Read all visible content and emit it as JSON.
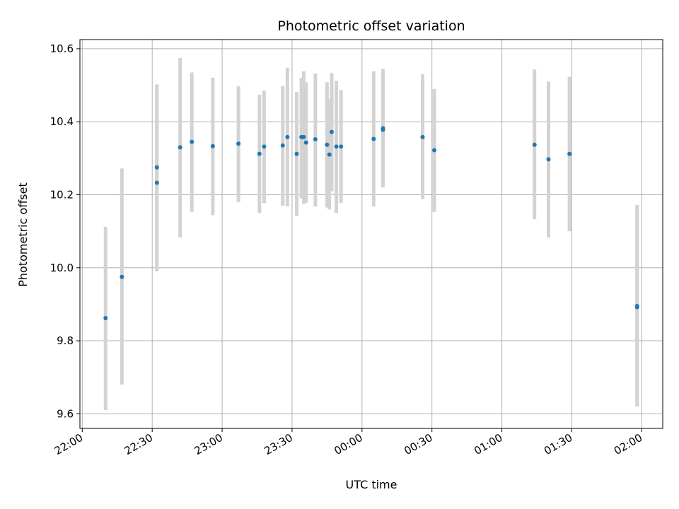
{
  "chart_data": {
    "type": "scatter",
    "title": "Photometric offset variation",
    "xlabel": "UTC time",
    "ylabel": "Photometric offset",
    "grid": true,
    "legend": "none",
    "colors": {
      "point": "#1f77b4",
      "errorbar": "#d3d3d3",
      "grid": "#b0b0b0"
    },
    "x_ticks": [
      "22:00",
      "22:30",
      "23:00",
      "23:30",
      "00:00",
      "00:30",
      "01:00",
      "01:30",
      "02:00"
    ],
    "y_ticks": [
      "9.6",
      "9.8",
      "10.0",
      "10.2",
      "10.4",
      "10.6"
    ],
    "xlim": [
      "21:59",
      "02:09"
    ],
    "ylim": [
      9.56,
      10.625
    ],
    "points": [
      {
        "x": "22:10",
        "y": 9.862,
        "err_low": 9.61,
        "err_high": 10.112
      },
      {
        "x": "22:17",
        "y": 9.975,
        "err_low": 9.68,
        "err_high": 10.272
      },
      {
        "x": "22:32",
        "y": 10.233,
        "err_low": 9.99,
        "err_high": 10.47
      },
      {
        "x": "22:32",
        "y": 10.275,
        "err_low": 10.05,
        "err_high": 10.502
      },
      {
        "x": "22:42",
        "y": 10.33,
        "err_low": 10.083,
        "err_high": 10.575
      },
      {
        "x": "22:47",
        "y": 10.345,
        "err_low": 10.153,
        "err_high": 10.535
      },
      {
        "x": "22:56",
        "y": 10.333,
        "err_low": 10.144,
        "err_high": 10.521
      },
      {
        "x": "23:07",
        "y": 10.34,
        "err_low": 10.18,
        "err_high": 10.497
      },
      {
        "x": "23:16",
        "y": 10.312,
        "err_low": 10.15,
        "err_high": 10.474
      },
      {
        "x": "23:18",
        "y": 10.332,
        "err_low": 10.177,
        "err_high": 10.485
      },
      {
        "x": "23:26",
        "y": 10.335,
        "err_low": 10.17,
        "err_high": 10.498
      },
      {
        "x": "23:28",
        "y": 10.358,
        "err_low": 10.168,
        "err_high": 10.548
      },
      {
        "x": "23:32",
        "y": 10.312,
        "err_low": 10.142,
        "err_high": 10.482
      },
      {
        "x": "23:34",
        "y": 10.358,
        "err_low": 10.19,
        "err_high": 10.52
      },
      {
        "x": "23:35",
        "y": 10.358,
        "err_low": 10.175,
        "err_high": 10.538
      },
      {
        "x": "23:36",
        "y": 10.343,
        "err_low": 10.178,
        "err_high": 10.508
      },
      {
        "x": "23:40",
        "y": 10.352,
        "err_low": 10.168,
        "err_high": 10.532
      },
      {
        "x": "23:45",
        "y": 10.337,
        "err_low": 10.165,
        "err_high": 10.508
      },
      {
        "x": "23:46",
        "y": 10.31,
        "err_low": 10.16,
        "err_high": 10.462
      },
      {
        "x": "23:47",
        "y": 10.372,
        "err_low": 10.21,
        "err_high": 10.533
      },
      {
        "x": "23:49",
        "y": 10.332,
        "err_low": 10.15,
        "err_high": 10.512
      },
      {
        "x": "23:51",
        "y": 10.332,
        "err_low": 10.177,
        "err_high": 10.487
      },
      {
        "x": "00:05",
        "y": 10.353,
        "err_low": 10.168,
        "err_high": 10.538
      },
      {
        "x": "00:09",
        "y": 10.382,
        "err_low": 10.23,
        "err_high": 10.538
      },
      {
        "x": "00:09",
        "y": 10.378,
        "err_low": 10.22,
        "err_high": 10.545
      },
      {
        "x": "00:26",
        "y": 10.358,
        "err_low": 10.188,
        "err_high": 10.53
      },
      {
        "x": "00:31",
        "y": 10.322,
        "err_low": 10.153,
        "err_high": 10.49
      },
      {
        "x": "01:14",
        "y": 10.337,
        "err_low": 10.133,
        "err_high": 10.543
      },
      {
        "x": "01:20",
        "y": 10.297,
        "err_low": 10.083,
        "err_high": 10.51
      },
      {
        "x": "01:29",
        "y": 10.312,
        "err_low": 10.1,
        "err_high": 10.523
      },
      {
        "x": "01:58",
        "y": 9.892,
        "err_low": 9.62,
        "err_high": 10.162
      },
      {
        "x": "01:58",
        "y": 9.895,
        "err_low": 9.625,
        "err_high": 10.172
      }
    ]
  }
}
